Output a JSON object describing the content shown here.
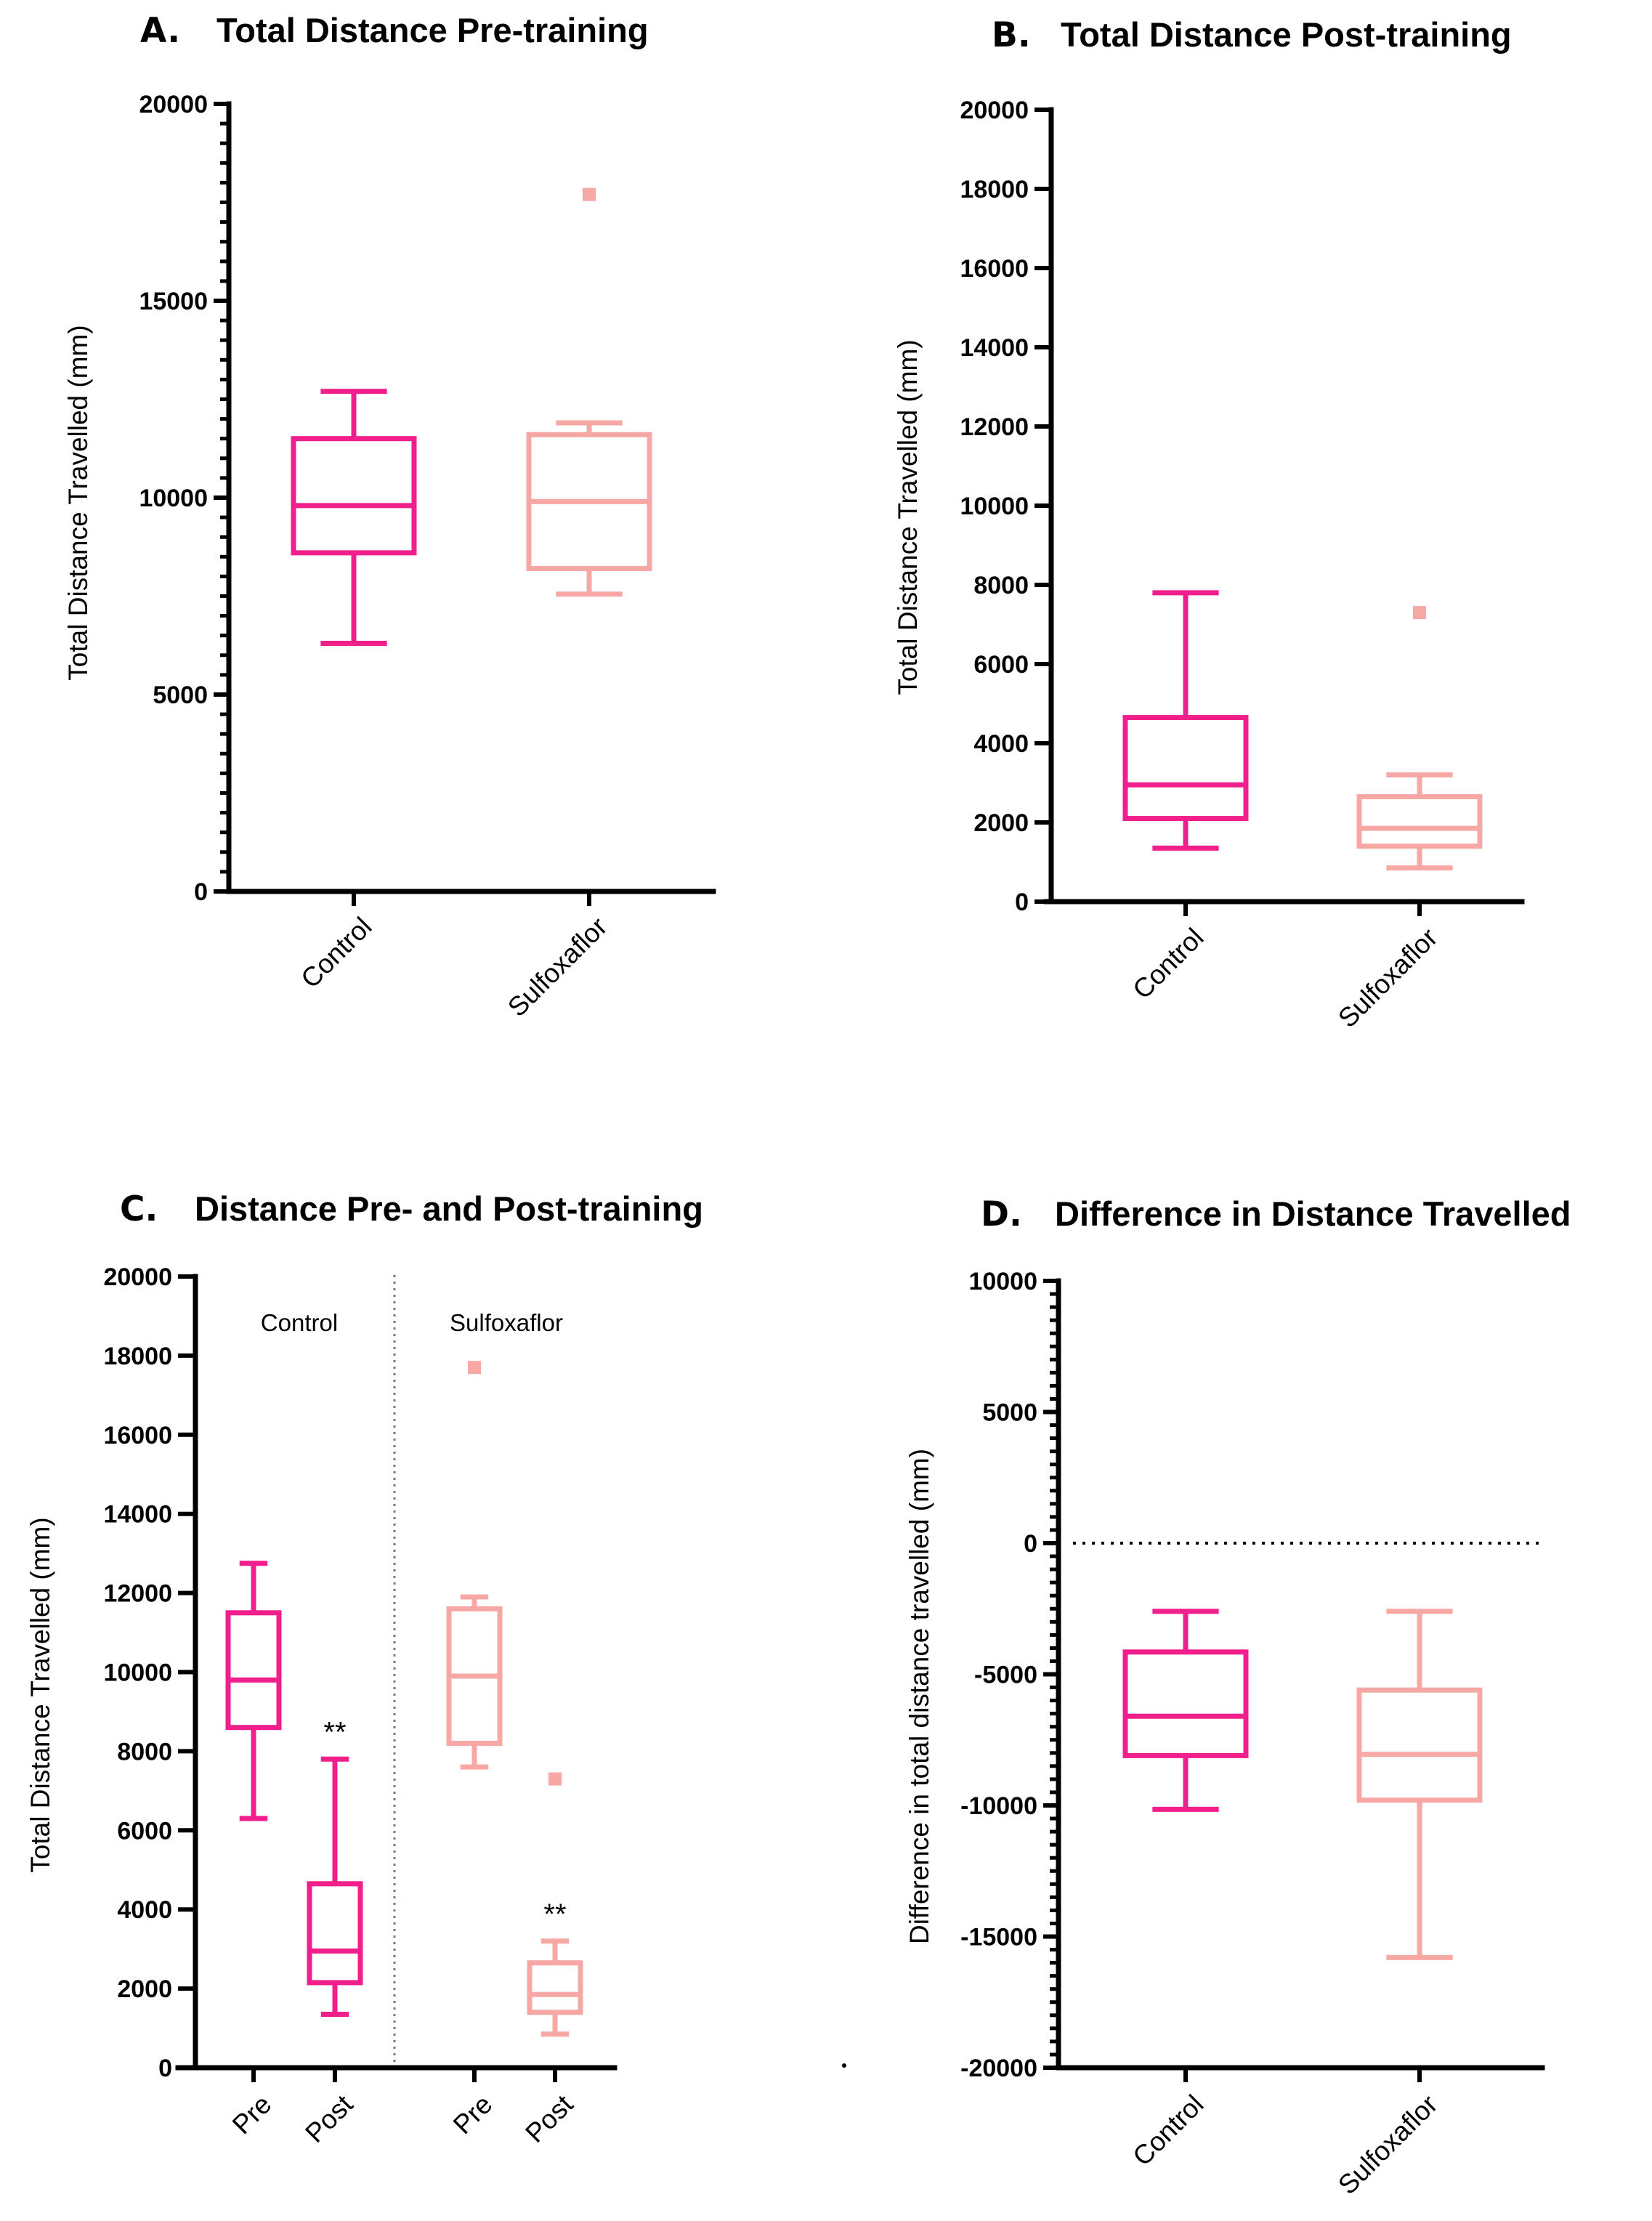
{
  "colors": {
    "control": "#f01f8c",
    "sulfoxaflor": "#f7a7a4",
    "axis": "#000000"
  },
  "chart_data": [
    {
      "id": "A",
      "type": "box",
      "panel_letter": "A.",
      "title": "Total Distance Pre-training",
      "ylabel": "Total Distance Travelled (mm)",
      "xlabel": "",
      "ylim": [
        0,
        20000
      ],
      "major_ticks": [
        0,
        5000,
        10000,
        15000,
        20000
      ],
      "tick_labels": [
        "0",
        "5000",
        "10000",
        "15000",
        "20000"
      ],
      "minor_per_major": 10,
      "categories": [
        "Control",
        "Sulfoxaflor"
      ],
      "series": [
        {
          "name": "Control",
          "color_key": "control",
          "min": 6300,
          "q1": 8600,
          "median": 9800,
          "q3": 11500,
          "max": 12700,
          "outliers": []
        },
        {
          "name": "Sulfoxaflor",
          "color_key": "sulfoxaflor",
          "min": 7550,
          "q1": 8200,
          "median": 9900,
          "q3": 11600,
          "max": 11900,
          "outliers": [
            17700
          ]
        }
      ]
    },
    {
      "id": "B",
      "type": "box",
      "panel_letter": "B.",
      "title": "Total Distance Post-training",
      "ylabel": "Total Distance Travelled (mm)",
      "xlabel": "",
      "ylim": [
        0,
        20000
      ],
      "major_ticks": [
        0,
        2000,
        4000,
        6000,
        8000,
        10000,
        12000,
        14000,
        16000,
        18000,
        20000
      ],
      "tick_labels": [
        "0",
        "2000",
        "4000",
        "6000",
        "8000",
        "10000",
        "12000",
        "14000",
        "16000",
        "18000",
        "20000"
      ],
      "minor_per_major": 0,
      "categories": [
        "Control",
        "Sulfoxaflor"
      ],
      "series": [
        {
          "name": "Control",
          "color_key": "control",
          "min": 1350,
          "q1": 2100,
          "median": 2950,
          "q3": 4650,
          "max": 7800,
          "outliers": []
        },
        {
          "name": "Sulfoxaflor",
          "color_key": "sulfoxaflor",
          "min": 850,
          "q1": 1400,
          "median": 1850,
          "q3": 2650,
          "max": 3200,
          "outliers": [
            7300
          ]
        }
      ]
    },
    {
      "id": "C",
      "type": "box",
      "panel_letter": "C.",
      "title": "Distance Pre- and Post-training",
      "ylabel": "Total Distance Travelled (mm)",
      "xlabel": "",
      "ylim": [
        0,
        20000
      ],
      "major_ticks": [
        0,
        2000,
        4000,
        6000,
        8000,
        10000,
        12000,
        14000,
        16000,
        18000,
        20000
      ],
      "tick_labels": [
        "0",
        "2000",
        "4000",
        "6000",
        "8000",
        "10000",
        "12000",
        "14000",
        "16000",
        "18000",
        "20000"
      ],
      "minor_per_major": 0,
      "categories": [
        "Pre",
        "Post",
        "Pre",
        "Post"
      ],
      "groups": [
        "Control",
        "Sulfoxaflor"
      ],
      "significance": "**",
      "series": [
        {
          "name": "Control Pre",
          "color_key": "control",
          "min": 6300,
          "q1": 8600,
          "median": 9800,
          "q3": 11500,
          "max": 12750,
          "outliers": []
        },
        {
          "name": "Control Post",
          "color_key": "control",
          "min": 1350,
          "q1": 2150,
          "median": 2950,
          "q3": 4650,
          "max": 7800,
          "outliers": [],
          "sig": "**"
        },
        {
          "name": "Sulfoxaflor Pre",
          "color_key": "sulfoxaflor",
          "min": 7600,
          "q1": 8200,
          "median": 9900,
          "q3": 11600,
          "max": 11900,
          "outliers": [
            17700
          ]
        },
        {
          "name": "Sulfoxaflor Post",
          "color_key": "sulfoxaflor",
          "min": 850,
          "q1": 1400,
          "median": 1850,
          "q3": 2650,
          "max": 3200,
          "outliers": [
            7300
          ],
          "sig": "**"
        }
      ]
    },
    {
      "id": "D",
      "type": "box",
      "panel_letter": "D.",
      "title": "Difference in Distance Travelled",
      "ylabel": "Difference in total distance travelled (mm)",
      "xlabel": "",
      "ylim": [
        -20000,
        10000
      ],
      "major_ticks": [
        -20000,
        -15000,
        -10000,
        -5000,
        0,
        5000,
        10000
      ],
      "tick_labels": [
        "-20000",
        "-15000",
        "-10000",
        "-5000",
        "0",
        "5000",
        "10000"
      ],
      "minor_per_major": 10,
      "reference_line": 0,
      "categories": [
        "Control",
        "Sulfoxaflor"
      ],
      "series": [
        {
          "name": "Control",
          "color_key": "control",
          "min": -10150,
          "q1": -8100,
          "median": -6600,
          "q3": -4150,
          "max": -2600,
          "outliers": []
        },
        {
          "name": "Sulfoxaflor",
          "color_key": "sulfoxaflor",
          "min": -15800,
          "q1": -9800,
          "median": -8050,
          "q3": -5600,
          "max": -2600,
          "outliers": []
        }
      ]
    }
  ]
}
